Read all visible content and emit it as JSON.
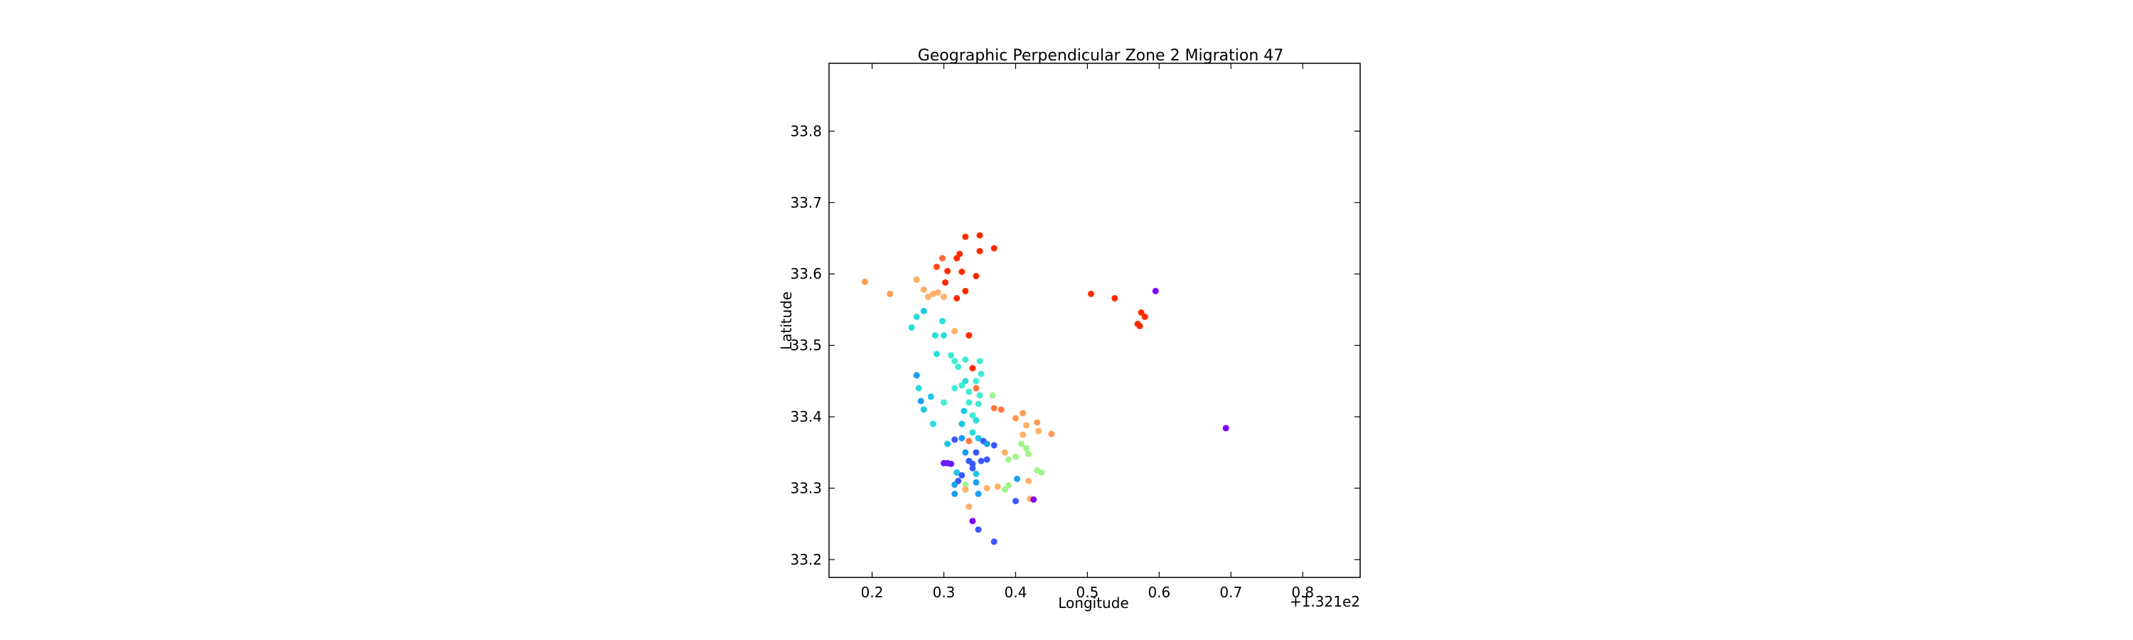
{
  "chart_data": {
    "type": "scatter",
    "title": "Geographic Perpendicular Zone 2 Migration 47",
    "xlabel": "Longitude",
    "ylabel": "Latitude",
    "x_offset_label": "+1.321e2",
    "xlim": [
      0.14,
      0.88
    ],
    "ylim": [
      33.175,
      33.895
    ],
    "xticks": [
      0.2,
      0.3,
      0.4,
      0.5,
      0.6,
      0.7,
      0.8
    ],
    "xtick_labels": [
      "0.2",
      "0.3",
      "0.4",
      "0.5",
      "0.6",
      "0.7",
      "0.8"
    ],
    "yticks": [
      33.2,
      33.3,
      33.4,
      33.5,
      33.6,
      33.7,
      33.8
    ],
    "ytick_labels": [
      "33.2",
      "33.3",
      "33.4",
      "33.5",
      "33.6",
      "33.7",
      "33.8"
    ],
    "grid": false,
    "points": [
      {
        "x": 0.33,
        "y": 33.652,
        "color": "#ff2a00"
      },
      {
        "x": 0.35,
        "y": 33.654,
        "color": "#ff2a00"
      },
      {
        "x": 0.35,
        "y": 33.632,
        "color": "#ff2a00"
      },
      {
        "x": 0.37,
        "y": 33.636,
        "color": "#ff2a00"
      },
      {
        "x": 0.318,
        "y": 33.622,
        "color": "#ff2a00"
      },
      {
        "x": 0.322,
        "y": 33.628,
        "color": "#ff2a00"
      },
      {
        "x": 0.29,
        "y": 33.61,
        "color": "#ff4c13"
      },
      {
        "x": 0.305,
        "y": 33.604,
        "color": "#ff2a00"
      },
      {
        "x": 0.325,
        "y": 33.603,
        "color": "#ff2a00"
      },
      {
        "x": 0.345,
        "y": 33.597,
        "color": "#ff2a00"
      },
      {
        "x": 0.298,
        "y": 33.622,
        "color": "#ff6a3a"
      },
      {
        "x": 0.302,
        "y": 33.588,
        "color": "#ff2a00"
      },
      {
        "x": 0.33,
        "y": 33.576,
        "color": "#ff2a00"
      },
      {
        "x": 0.318,
        "y": 33.566,
        "color": "#ff2a00"
      },
      {
        "x": 0.335,
        "y": 33.514,
        "color": "#ff2a00"
      },
      {
        "x": 0.19,
        "y": 33.589,
        "color": "#ff9a50"
      },
      {
        "x": 0.225,
        "y": 33.572,
        "color": "#ff9a50"
      },
      {
        "x": 0.262,
        "y": 33.592,
        "color": "#ffb066"
      },
      {
        "x": 0.272,
        "y": 33.578,
        "color": "#ffb066"
      },
      {
        "x": 0.278,
        "y": 33.568,
        "color": "#ffb066"
      },
      {
        "x": 0.285,
        "y": 33.572,
        "color": "#ffb066"
      },
      {
        "x": 0.292,
        "y": 33.574,
        "color": "#ffb066"
      },
      {
        "x": 0.3,
        "y": 33.568,
        "color": "#ffb066"
      },
      {
        "x": 0.315,
        "y": 33.52,
        "color": "#ffb066"
      },
      {
        "x": 0.505,
        "y": 33.572,
        "color": "#ff2a00"
      },
      {
        "x": 0.538,
        "y": 33.566,
        "color": "#ff2a00"
      },
      {
        "x": 0.575,
        "y": 33.546,
        "color": "#ff2a00"
      },
      {
        "x": 0.58,
        "y": 33.54,
        "color": "#ff2a00"
      },
      {
        "x": 0.57,
        "y": 33.53,
        "color": "#ff2a00"
      },
      {
        "x": 0.573,
        "y": 33.527,
        "color": "#ff2a00"
      },
      {
        "x": 0.595,
        "y": 33.576,
        "color": "#8000ff"
      },
      {
        "x": 0.693,
        "y": 33.384,
        "color": "#8000ff"
      },
      {
        "x": 0.262,
        "y": 33.54,
        "color": "#2adddd"
      },
      {
        "x": 0.255,
        "y": 33.525,
        "color": "#2adddd"
      },
      {
        "x": 0.272,
        "y": 33.548,
        "color": "#1ac7e6"
      },
      {
        "x": 0.298,
        "y": 33.534,
        "color": "#2adddd"
      },
      {
        "x": 0.288,
        "y": 33.514,
        "color": "#2adddd"
      },
      {
        "x": 0.3,
        "y": 33.514,
        "color": "#2adddd"
      },
      {
        "x": 0.29,
        "y": 33.488,
        "color": "#2adddd"
      },
      {
        "x": 0.31,
        "y": 33.486,
        "color": "#40ecd4"
      },
      {
        "x": 0.315,
        "y": 33.478,
        "color": "#40ecd4"
      },
      {
        "x": 0.32,
        "y": 33.47,
        "color": "#40ecd4"
      },
      {
        "x": 0.33,
        "y": 33.48,
        "color": "#40ecd4"
      },
      {
        "x": 0.34,
        "y": 33.468,
        "color": "#ff2a00"
      },
      {
        "x": 0.35,
        "y": 33.478,
        "color": "#40ecd4"
      },
      {
        "x": 0.352,
        "y": 33.46,
        "color": "#40ecd4"
      },
      {
        "x": 0.345,
        "y": 33.45,
        "color": "#40ecd4"
      },
      {
        "x": 0.33,
        "y": 33.45,
        "color": "#2adddd"
      },
      {
        "x": 0.325,
        "y": 33.444,
        "color": "#40ecd4"
      },
      {
        "x": 0.315,
        "y": 33.44,
        "color": "#40ecd4"
      },
      {
        "x": 0.335,
        "y": 33.435,
        "color": "#40ecd4"
      },
      {
        "x": 0.345,
        "y": 33.44,
        "color": "#ff7a3a"
      },
      {
        "x": 0.35,
        "y": 33.43,
        "color": "#40ecd4"
      },
      {
        "x": 0.262,
        "y": 33.458,
        "color": "#1a9ff0"
      },
      {
        "x": 0.265,
        "y": 33.44,
        "color": "#2adddd"
      },
      {
        "x": 0.268,
        "y": 33.422,
        "color": "#1a9ff0"
      },
      {
        "x": 0.272,
        "y": 33.41,
        "color": "#1ac7e6"
      },
      {
        "x": 0.282,
        "y": 33.428,
        "color": "#1ac7e6"
      },
      {
        "x": 0.285,
        "y": 33.39,
        "color": "#2adddd"
      },
      {
        "x": 0.3,
        "y": 33.42,
        "color": "#40ecd4"
      },
      {
        "x": 0.335,
        "y": 33.42,
        "color": "#40ecd4"
      },
      {
        "x": 0.348,
        "y": 33.418,
        "color": "#40ecd4"
      },
      {
        "x": 0.328,
        "y": 33.408,
        "color": "#1ac7e6"
      },
      {
        "x": 0.34,
        "y": 33.402,
        "color": "#40ecd4"
      },
      {
        "x": 0.345,
        "y": 33.395,
        "color": "#2adddd"
      },
      {
        "x": 0.325,
        "y": 33.39,
        "color": "#1ac7e6"
      },
      {
        "x": 0.368,
        "y": 33.43,
        "color": "#a0f58c"
      },
      {
        "x": 0.37,
        "y": 33.412,
        "color": "#ff7a3a"
      },
      {
        "x": 0.38,
        "y": 33.41,
        "color": "#ff7a3a"
      },
      {
        "x": 0.4,
        "y": 33.398,
        "color": "#ff9a50"
      },
      {
        "x": 0.41,
        "y": 33.405,
        "color": "#ff9a50"
      },
      {
        "x": 0.415,
        "y": 33.388,
        "color": "#ffb066"
      },
      {
        "x": 0.43,
        "y": 33.392,
        "color": "#ff9a50"
      },
      {
        "x": 0.432,
        "y": 33.38,
        "color": "#ffb066"
      },
      {
        "x": 0.45,
        "y": 33.376,
        "color": "#ff9a50"
      },
      {
        "x": 0.41,
        "y": 33.375,
        "color": "#ffb066"
      },
      {
        "x": 0.408,
        "y": 33.362,
        "color": "#a0f58c"
      },
      {
        "x": 0.415,
        "y": 33.356,
        "color": "#a0f58c"
      },
      {
        "x": 0.418,
        "y": 33.348,
        "color": "#a0f58c"
      },
      {
        "x": 0.4,
        "y": 33.344,
        "color": "#a0f58c"
      },
      {
        "x": 0.39,
        "y": 33.34,
        "color": "#a0f58c"
      },
      {
        "x": 0.385,
        "y": 33.35,
        "color": "#ffb066"
      },
      {
        "x": 0.43,
        "y": 33.325,
        "color": "#a0f58c"
      },
      {
        "x": 0.436,
        "y": 33.322,
        "color": "#a0f58c"
      },
      {
        "x": 0.418,
        "y": 33.31,
        "color": "#ffb066"
      },
      {
        "x": 0.39,
        "y": 33.304,
        "color": "#a0f58c"
      },
      {
        "x": 0.385,
        "y": 33.298,
        "color": "#a0f58c"
      },
      {
        "x": 0.375,
        "y": 33.302,
        "color": "#ffb066"
      },
      {
        "x": 0.36,
        "y": 33.3,
        "color": "#ffb066"
      },
      {
        "x": 0.42,
        "y": 33.285,
        "color": "#ffb066"
      },
      {
        "x": 0.315,
        "y": 33.368,
        "color": "#3b59ff"
      },
      {
        "x": 0.325,
        "y": 33.37,
        "color": "#1a9ff0"
      },
      {
        "x": 0.335,
        "y": 33.366,
        "color": "#ff7a3a"
      },
      {
        "x": 0.34,
        "y": 33.378,
        "color": "#2adddd"
      },
      {
        "x": 0.348,
        "y": 33.37,
        "color": "#1ac7e6"
      },
      {
        "x": 0.355,
        "y": 33.366,
        "color": "#3b59ff"
      },
      {
        "x": 0.36,
        "y": 33.362,
        "color": "#1a9ff0"
      },
      {
        "x": 0.37,
        "y": 33.36,
        "color": "#3b59ff"
      },
      {
        "x": 0.305,
        "y": 33.362,
        "color": "#1ac7e6"
      },
      {
        "x": 0.33,
        "y": 33.35,
        "color": "#1a9ff0"
      },
      {
        "x": 0.345,
        "y": 33.35,
        "color": "#3b59ff"
      },
      {
        "x": 0.36,
        "y": 33.34,
        "color": "#3b59ff"
      },
      {
        "x": 0.352,
        "y": 33.338,
        "color": "#3b59ff"
      },
      {
        "x": 0.335,
        "y": 33.338,
        "color": "#3b59ff"
      },
      {
        "x": 0.34,
        "y": 33.334,
        "color": "#3b59ff"
      },
      {
        "x": 0.3,
        "y": 33.335,
        "color": "#6a1aff"
      },
      {
        "x": 0.305,
        "y": 33.335,
        "color": "#6a1aff"
      },
      {
        "x": 0.31,
        "y": 33.334,
        "color": "#6a1aff"
      },
      {
        "x": 0.34,
        "y": 33.328,
        "color": "#3b59ff"
      },
      {
        "x": 0.318,
        "y": 33.322,
        "color": "#1ac7e6"
      },
      {
        "x": 0.325,
        "y": 33.318,
        "color": "#3b59ff"
      },
      {
        "x": 0.345,
        "y": 33.32,
        "color": "#1ac7e6"
      },
      {
        "x": 0.32,
        "y": 33.31,
        "color": "#3b59ff"
      },
      {
        "x": 0.33,
        "y": 33.305,
        "color": "#a0f58c"
      },
      {
        "x": 0.315,
        "y": 33.305,
        "color": "#1a9ff0"
      },
      {
        "x": 0.345,
        "y": 33.308,
        "color": "#1a9ff0"
      },
      {
        "x": 0.315,
        "y": 33.292,
        "color": "#1a9ff0"
      },
      {
        "x": 0.348,
        "y": 33.292,
        "color": "#1a9ff0"
      },
      {
        "x": 0.33,
        "y": 33.298,
        "color": "#ffb066"
      },
      {
        "x": 0.402,
        "y": 33.313,
        "color": "#1a9ff0"
      },
      {
        "x": 0.4,
        "y": 33.282,
        "color": "#3b59ff"
      },
      {
        "x": 0.425,
        "y": 33.284,
        "color": "#8000ff"
      },
      {
        "x": 0.335,
        "y": 33.274,
        "color": "#ffb066"
      },
      {
        "x": 0.34,
        "y": 33.254,
        "color": "#8000ff"
      },
      {
        "x": 0.348,
        "y": 33.242,
        "color": "#3b59ff"
      },
      {
        "x": 0.37,
        "y": 33.225,
        "color": "#3b59ff"
      }
    ]
  }
}
